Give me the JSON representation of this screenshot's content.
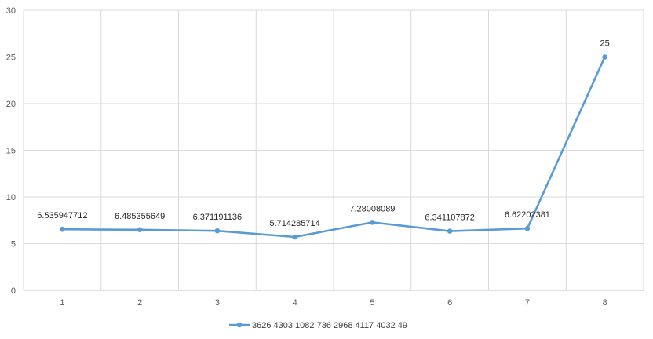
{
  "chart_data": {
    "type": "line",
    "categories": [
      "1",
      "2",
      "3",
      "4",
      "5",
      "6",
      "7",
      "8"
    ],
    "series": [
      {
        "name": "3626 4303 1082 736 2968 4117 4032 49",
        "values": [
          6.535947712,
          6.485355649,
          6.371191136,
          5.714285714,
          7.28008089,
          6.341107872,
          6.62202381,
          25
        ],
        "labels": [
          "6.535947712",
          "6.485355649",
          "6.371191136",
          "5.714285714",
          "7.28008089",
          "6.341107872",
          "6.62202381",
          "25"
        ],
        "color": "#5b9bd5"
      }
    ],
    "ylim": [
      0,
      30
    ],
    "yticks": [
      "0",
      "5",
      "10",
      "15",
      "20",
      "25",
      "30"
    ],
    "grid": true,
    "legend": "bottom"
  }
}
